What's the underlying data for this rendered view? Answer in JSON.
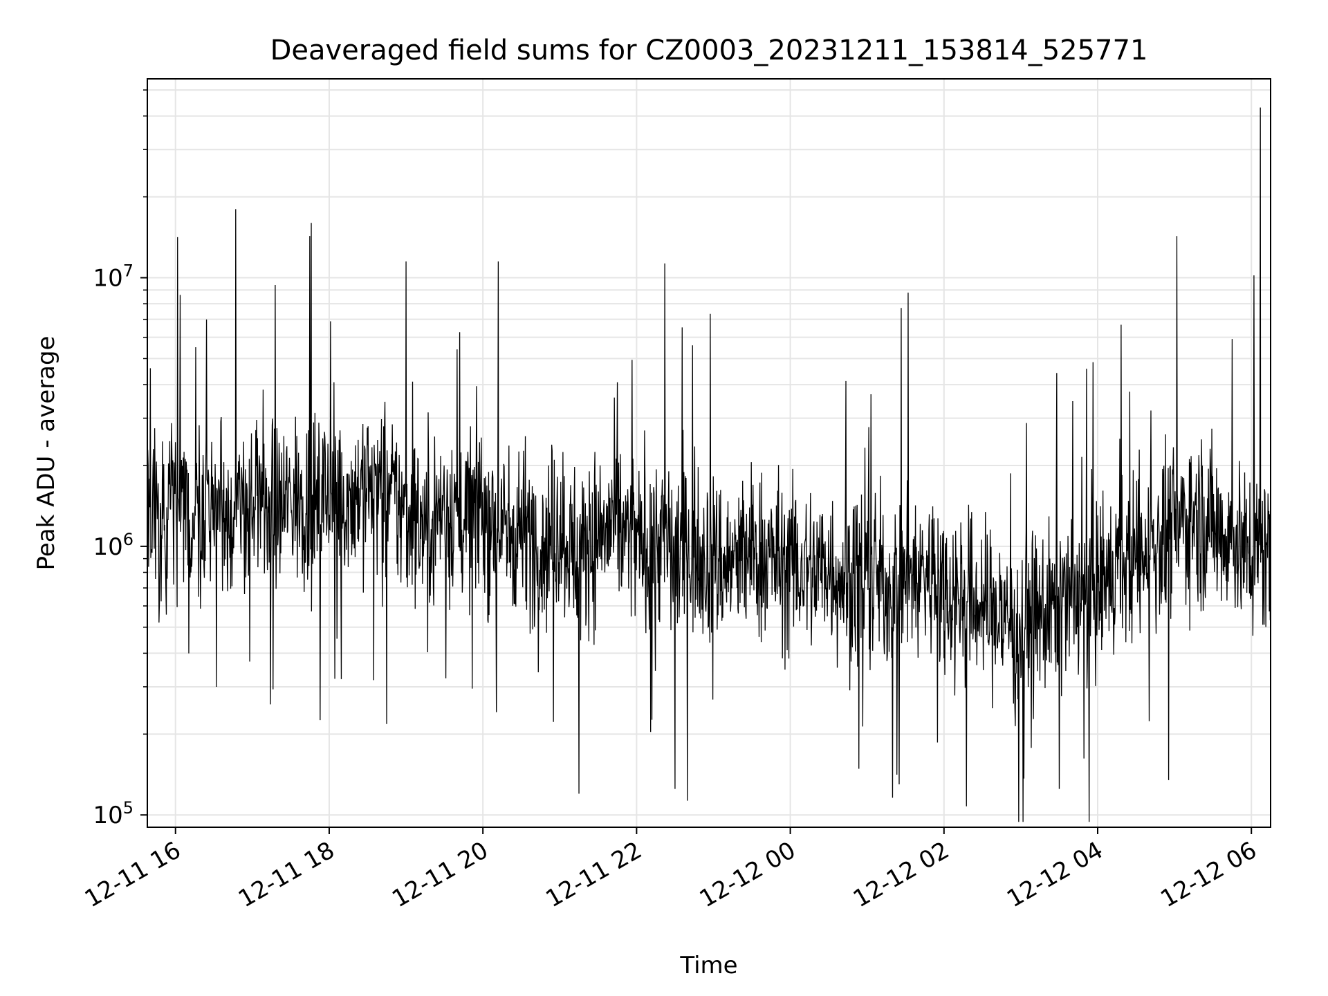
{
  "chart_data": {
    "type": "line",
    "title": "Deaveraged field sums for CZ0003_20231211_153814_525771",
    "xlabel": "Time",
    "ylabel": "Peak ADU - average",
    "yscale": "log",
    "ylim": [
      90000,
      55000000
    ],
    "xlim": [
      "2023-12-11 15:38",
      "2023-12-12 06:15"
    ],
    "grid": true,
    "line_color": "#000000",
    "grid_color": "#e5e5e5",
    "x_ticks": [
      {
        "value": "2023-12-11 16:00",
        "label": "12-11 16"
      },
      {
        "value": "2023-12-11 18:00",
        "label": "12-11 18"
      },
      {
        "value": "2023-12-11 20:00",
        "label": "12-11 20"
      },
      {
        "value": "2023-12-11 22:00",
        "label": "12-11 22"
      },
      {
        "value": "2023-12-12 00:00",
        "label": "12-12 00"
      },
      {
        "value": "2023-12-12 02:00",
        "label": "12-12 02"
      },
      {
        "value": "2023-12-12 04:00",
        "label": "12-12 04"
      },
      {
        "value": "2023-12-12 06:00",
        "label": "12-12 06"
      }
    ],
    "y_ticks": [
      {
        "value": 100000,
        "base": "10",
        "exp": "5"
      },
      {
        "value": 1000000,
        "base": "10",
        "exp": "6"
      },
      {
        "value": 10000000,
        "base": "10",
        "exp": "7"
      }
    ],
    "series": [
      {
        "x": [
          "2023-12-11 15:45",
          "2023-12-11 16:00",
          "2023-12-11 16:15",
          "2023-12-11 16:30",
          "2023-12-11 16:45",
          "2023-12-11 17:00",
          "2023-12-11 17:15",
          "2023-12-11 17:30",
          "2023-12-11 17:45",
          "2023-12-11 18:00",
          "2023-12-11 18:15",
          "2023-12-11 18:30",
          "2023-12-11 18:45",
          "2023-12-11 19:00",
          "2023-12-11 19:15",
          "2023-12-11 19:30",
          "2023-12-11 19:45",
          "2023-12-11 20:00",
          "2023-12-11 20:15",
          "2023-12-11 20:30",
          "2023-12-11 20:45",
          "2023-12-11 21:00",
          "2023-12-11 21:15",
          "2023-12-11 21:30",
          "2023-12-11 21:45",
          "2023-12-11 22:00",
          "2023-12-11 22:15",
          "2023-12-11 22:30",
          "2023-12-11 22:45",
          "2023-12-11 23:00",
          "2023-12-11 23:15",
          "2023-12-11 23:30",
          "2023-12-11 23:45",
          "2023-12-12 00:00",
          "2023-12-12 00:15",
          "2023-12-12 00:30",
          "2023-12-12 00:45",
          "2023-12-12 01:00",
          "2023-12-12 01:15",
          "2023-12-12 01:30",
          "2023-12-12 01:45",
          "2023-12-12 02:00",
          "2023-12-12 02:15",
          "2023-12-12 02:30",
          "2023-12-12 02:45",
          "2023-12-12 03:00",
          "2023-12-12 03:15",
          "2023-12-12 03:30",
          "2023-12-12 03:45",
          "2023-12-12 04:00",
          "2023-12-12 04:15",
          "2023-12-12 04:30",
          "2023-12-12 04:45",
          "2023-12-12 05:00",
          "2023-12-12 05:15",
          "2023-12-12 05:30",
          "2023-12-12 05:45",
          "2023-12-12 06:00",
          "2023-12-12 06:15"
        ],
        "values": [
          1300000,
          1400000,
          1200000,
          1500000,
          1300000,
          1400000,
          1300000,
          1500000,
          1400000,
          1600000,
          1500000,
          1700000,
          1600000,
          1300000,
          1200000,
          1400000,
          1300000,
          1400000,
          1100000,
          1200000,
          1000000,
          1200000,
          900000,
          1100000,
          1200000,
          1000000,
          1100000,
          950000,
          1000000,
          900000,
          850000,
          950000,
          900000,
          850000,
          800000,
          850000,
          750000,
          800000,
          700000,
          750000,
          800000,
          700000,
          650000,
          600000,
          550000,
          500000,
          550000,
          600000,
          650000,
          700000,
          800000,
          900000,
          1000000,
          1200000,
          1300000,
          1200000,
          1100000,
          900000,
          1000000
        ]
      }
    ],
    "peaks": [
      {
        "x": "2023-12-11 16:47",
        "value": 18000000
      },
      {
        "x": "2023-12-11 17:46",
        "value": 16000000
      },
      {
        "x": "2023-12-11 19:00",
        "value": 11500000
      },
      {
        "x": "2023-12-11 20:12",
        "value": 11500000
      },
      {
        "x": "2023-12-11 22:22",
        "value": 11300000
      },
      {
        "x": "2023-12-12 01:32",
        "value": 8800000
      },
      {
        "x": "2023-12-12 06:02",
        "value": 10200000
      },
      {
        "x": "2023-12-12 06:07",
        "value": 43000000
      }
    ],
    "troughs": [
      {
        "x": "2023-12-11 21:15",
        "value": 120000
      },
      {
        "x": "2023-12-11 22:30",
        "value": 125000
      },
      {
        "x": "2023-12-12 01:25",
        "value": 130000
      },
      {
        "x": "2023-12-12 03:30",
        "value": 125000
      }
    ]
  }
}
